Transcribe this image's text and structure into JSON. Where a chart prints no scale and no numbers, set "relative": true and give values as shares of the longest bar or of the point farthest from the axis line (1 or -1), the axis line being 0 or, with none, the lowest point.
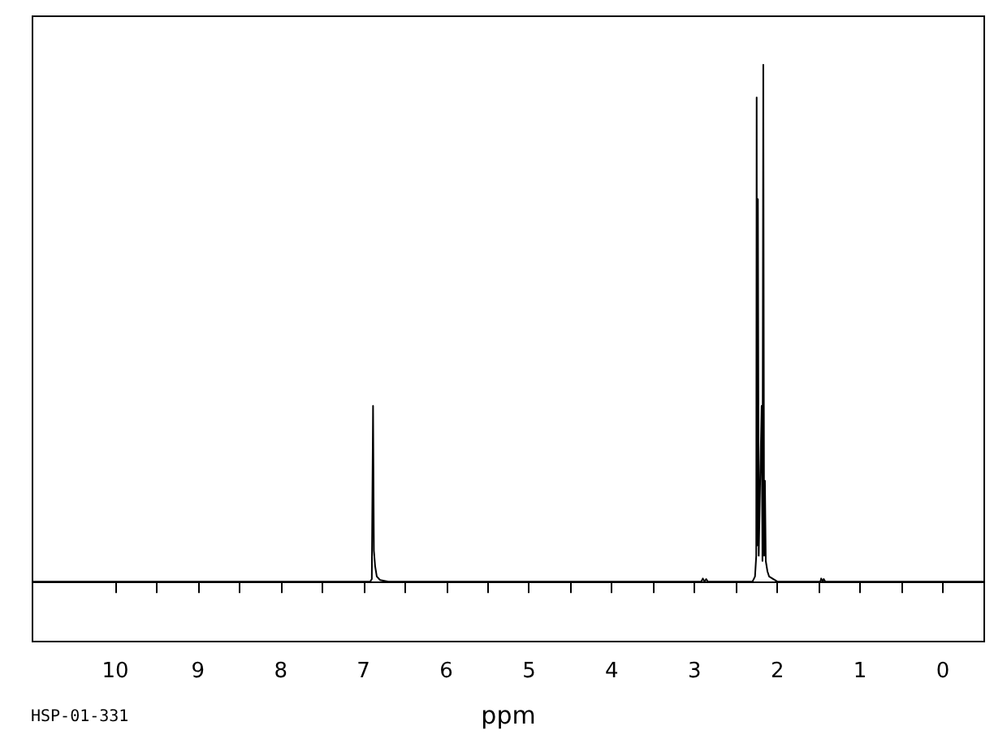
{
  "chart_data": {
    "type": "line",
    "relative": true,
    "xlabel": "ppm",
    "annotations": [
      "HSP-01-331"
    ],
    "x": [
      11.0,
      7.0,
      6.92,
      6.9,
      6.885,
      6.875,
      6.86,
      6.84,
      6.8,
      6.7,
      2.92,
      2.9,
      2.88,
      2.86,
      2.84,
      2.3,
      2.27,
      2.255,
      2.25,
      2.245,
      2.235,
      2.225,
      2.19,
      2.18,
      2.17,
      2.16,
      2.15,
      2.14,
      2.12,
      2.1,
      2.0,
      1.48,
      1.47,
      1.45,
      1.44,
      1.42,
      -0.5
    ],
    "series": [
      {
        "color": "#000000",
        "values": [
          0,
          0,
          0,
          0.005,
          0.34,
          0.06,
          0.03,
          0.01,
          0.003,
          0,
          0,
          0.006,
          0,
          0.005,
          0,
          0,
          0.01,
          0.05,
          0.937,
          0.07,
          0.74,
          0.05,
          0.34,
          0.04,
          1.0,
          0.05,
          0.195,
          0.04,
          0.02,
          0.01,
          0,
          0,
          0.006,
          0,
          0.005,
          0,
          0
        ]
      }
    ],
    "xlim": [
      11.0,
      -0.5
    ],
    "xticks": [
      10,
      {
        "value": 9.5,
        "label": null
      },
      9,
      {
        "value": 8.5,
        "label": null
      },
      8,
      {
        "value": 7.5,
        "label": null
      },
      7,
      {
        "value": 6.5,
        "label": null
      },
      6,
      {
        "value": 5.5,
        "label": null
      },
      5,
      {
        "value": 4.5,
        "label": null
      },
      4,
      {
        "value": 3.5,
        "label": null
      },
      3,
      {
        "value": 2.5,
        "label": null
      },
      2,
      {
        "value": 1.5,
        "label": null
      },
      1,
      {
        "value": 0.5,
        "label": null
      },
      0
    ],
    "grid": false,
    "marker": "none",
    "line_style": "solid"
  }
}
